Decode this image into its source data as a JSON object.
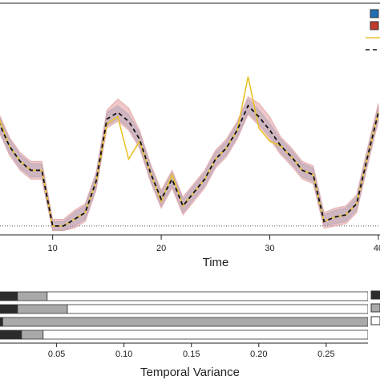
{
  "chart_data": [
    {
      "type": "line",
      "x_label": "Time",
      "x": [
        5,
        6,
        7,
        8,
        9,
        10,
        11,
        12,
        13,
        14,
        15,
        16,
        17,
        18,
        19,
        20,
        21,
        22,
        23,
        24,
        25,
        26,
        27,
        28,
        29,
        30,
        31,
        32,
        33,
        34,
        35,
        36,
        37,
        38,
        39,
        40
      ],
      "xlim": [
        5.15,
        40.15
      ],
      "xticks": [
        10,
        20,
        30,
        40
      ],
      "ylim": [
        -0.04,
        1
      ],
      "reference_line": 0,
      "legend": "upper right",
      "series": [
        {
          "type": "band",
          "color": "#7fb0db",
          "legend_color": "#1f6fb4",
          "lower": [
            0.44,
            0.33,
            0.26,
            0.22,
            0.22,
            -0.02,
            -0.02,
            0.0,
            0.03,
            0.17,
            0.45,
            0.48,
            0.44,
            0.36,
            0.21,
            0.09,
            0.18,
            0.06,
            0.12,
            0.18,
            0.27,
            0.32,
            0.4,
            0.51,
            0.46,
            0.4,
            0.33,
            0.28,
            0.22,
            0.2,
            0.0,
            0.01,
            0.02,
            0.07,
            0.28,
            0.48
          ],
          "upper": [
            0.5,
            0.39,
            0.32,
            0.28,
            0.28,
            0.02,
            0.02,
            0.06,
            0.09,
            0.23,
            0.51,
            0.54,
            0.5,
            0.42,
            0.27,
            0.15,
            0.24,
            0.12,
            0.18,
            0.24,
            0.33,
            0.38,
            0.46,
            0.57,
            0.52,
            0.46,
            0.39,
            0.34,
            0.28,
            0.26,
            0.05,
            0.07,
            0.08,
            0.13,
            0.34,
            0.54
          ]
        },
        {
          "type": "band",
          "color": "#e09a9a",
          "legend_color": "#c0392b",
          "lower": [
            0.43,
            0.32,
            0.25,
            0.21,
            0.21,
            -0.02,
            -0.02,
            -0.01,
            0.02,
            0.16,
            0.44,
            0.47,
            0.43,
            0.35,
            0.2,
            0.08,
            0.17,
            0.05,
            0.11,
            0.17,
            0.26,
            0.31,
            0.39,
            0.5,
            0.45,
            0.39,
            0.32,
            0.27,
            0.21,
            0.19,
            -0.01,
            0.0,
            0.01,
            0.06,
            0.27,
            0.47
          ],
          "upper": [
            0.51,
            0.4,
            0.33,
            0.29,
            0.29,
            0.03,
            0.03,
            0.07,
            0.1,
            0.24,
            0.52,
            0.57,
            0.53,
            0.43,
            0.28,
            0.16,
            0.25,
            0.13,
            0.19,
            0.25,
            0.34,
            0.39,
            0.47,
            0.58,
            0.55,
            0.49,
            0.4,
            0.35,
            0.29,
            0.27,
            0.06,
            0.08,
            0.09,
            0.14,
            0.35,
            0.55
          ]
        },
        {
          "type": "line",
          "color": "#e8c22a",
          "dashed": false,
          "values": [
            0.49,
            0.36,
            0.29,
            0.25,
            0.25,
            0.0,
            0.0,
            0.03,
            0.06,
            0.2,
            0.46,
            0.49,
            0.3,
            0.38,
            0.24,
            0.11,
            0.23,
            0.09,
            0.15,
            0.21,
            0.3,
            0.35,
            0.43,
            0.67,
            0.44,
            0.38,
            0.36,
            0.31,
            0.25,
            0.23,
            0.02,
            0.04,
            0.05,
            0.1,
            0.31,
            0.51
          ]
        },
        {
          "type": "line",
          "color": "#111111",
          "dashed": true,
          "values": [
            0.47,
            0.36,
            0.29,
            0.25,
            0.25,
            0.0,
            0.0,
            0.03,
            0.06,
            0.2,
            0.48,
            0.51,
            0.47,
            0.39,
            0.24,
            0.12,
            0.21,
            0.09,
            0.15,
            0.21,
            0.3,
            0.35,
            0.43,
            0.54,
            0.49,
            0.43,
            0.36,
            0.31,
            0.25,
            0.23,
            0.02,
            0.04,
            0.05,
            0.1,
            0.31,
            0.51
          ]
        }
      ]
    },
    {
      "type": "stacked_hbar",
      "x_label": "Temporal Variance",
      "categories": [
        null,
        null,
        null,
        null
      ],
      "xlim": [
        0.008,
        0.281
      ],
      "xticks": [
        0.05,
        {
          "value": 0.1,
          "label": "0.10"
        },
        0.15,
        {
          "value": 0.2,
          "label": "0.20"
        },
        0.25
      ],
      "legend": "right",
      "series": [
        {
          "color": "#2b2b2b",
          "values": [
            0.021,
            0.021,
            0.01,
            0.024
          ]
        },
        {
          "color": "#a9a9a9",
          "values": [
            0.022,
            0.037,
            0.271,
            0.016
          ]
        },
        {
          "color": "#ffffff",
          "values": [
            0.238,
            0.223,
            0.0,
            0.241
          ]
        }
      ]
    }
  ]
}
